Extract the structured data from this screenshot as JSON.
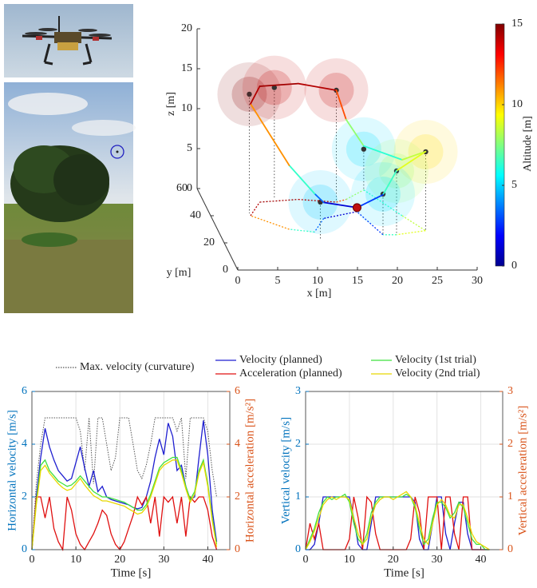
{
  "chart_data": [
    {
      "type": "line3d",
      "xlabel": "x [m]",
      "ylabel": "y [m]",
      "zlabel": "z [m]",
      "clabel": "Altitude [m]",
      "xlim": [
        0,
        30
      ],
      "ylim": [
        0,
        60
      ],
      "zlim": [
        0,
        20
      ],
      "clim": [
        0,
        15
      ],
      "xticks": [
        0,
        5,
        10,
        15,
        20,
        25,
        30
      ],
      "yticks": [
        0,
        20,
        40,
        60
      ],
      "zticks": [
        0,
        5,
        10,
        15,
        20
      ],
      "cticks": [
        0,
        5,
        10,
        15
      ],
      "waypoints": {
        "x": [
          5,
          9,
          16.6,
          20.8,
          26,
          22.1,
          20.4,
          12.2
        ],
        "y": [
          41.8,
          52,
          50,
          59,
          28.8,
          25.9,
          25.9,
          21.8
        ],
        "z": [
          14.9,
          14,
          14,
          5.1,
          9.9,
          8,
          5.1,
          4.8
        ]
      },
      "trajectory": {
        "x": [
          18.6,
          14,
          12,
          9,
          5,
          7,
          12,
          16.6,
          18,
          20.8,
          24,
          26,
          22.1,
          20.4,
          18.6
        ],
        "y": [
          43,
          38,
          28,
          30,
          40,
          50,
          52,
          50,
          52,
          59,
          40,
          29,
          26,
          26,
          43
        ],
        "z": [
          0.5,
          2,
          4.8,
          8,
          14,
          14.5,
          14.5,
          14,
          10,
          5.5,
          7,
          9.9,
          8,
          5,
          0.5
        ]
      }
    },
    {
      "type": "line",
      "xlabel": "Time [s]",
      "ylabel": "Horizontal velocity [m/s]",
      "y2label": "Horizontal acceleration [m/s²]",
      "xlim": [
        0,
        45
      ],
      "xticks": [
        0,
        10,
        20,
        30,
        40
      ],
      "ylim": [
        0,
        6
      ],
      "yticks": [
        0,
        2,
        4,
        6
      ],
      "y2lim": [
        0,
        6
      ],
      "y2ticks": [
        0,
        2,
        4,
        6
      ],
      "grid": true,
      "legend": true,
      "x": [
        0,
        1,
        2,
        3,
        4,
        5,
        6,
        7,
        8,
        9,
        10,
        11,
        12,
        13,
        14,
        15,
        16,
        17,
        18,
        19,
        20,
        21,
        22,
        23,
        24,
        25,
        26,
        27,
        28,
        29,
        30,
        31,
        32,
        33,
        34,
        35,
        36,
        37,
        38,
        39,
        40,
        41,
        42
      ],
      "series": [
        {
          "name": "Max. velocity (curvature)",
          "color": "#555555",
          "linestyle": "dotted",
          "values": [
            0,
            2.5,
            4,
            5,
            5,
            5,
            5,
            5,
            5,
            5,
            5,
            4.5,
            3,
            5,
            2.5,
            5,
            5,
            4,
            3,
            3.5,
            5,
            5,
            5,
            4,
            3,
            2.7,
            3.2,
            4,
            5,
            5,
            5,
            5,
            5,
            4.5,
            5,
            2.7,
            5,
            5,
            5,
            5,
            4.5,
            3,
            2
          ]
        },
        {
          "name": "Velocity (planned)",
          "color": "#1f1fd0",
          "values": [
            0,
            2,
            3.5,
            4.6,
            3.9,
            3.4,
            3,
            2.8,
            2.6,
            2.7,
            3.3,
            3.9,
            3.1,
            2.4,
            3,
            2.2,
            2.4,
            2,
            1.9,
            1.85,
            1.8,
            1.75,
            1.7,
            1.6,
            1.55,
            1.6,
            2,
            2.6,
            3.5,
            4.2,
            3.6,
            4.8,
            4.3,
            3,
            3.2,
            2.4,
            1.9,
            2,
            3.5,
            4.9,
            3.6,
            1.5,
            0.3
          ]
        },
        {
          "name": "Acceleration (planned)",
          "color": "#e01010",
          "axis": "y2",
          "values": [
            0,
            2,
            2,
            1.2,
            2,
            0.8,
            0.3,
            0,
            2,
            1.5,
            0.6,
            0.2,
            0,
            0.3,
            0.6,
            1,
            1.5,
            1.3,
            0.6,
            0.2,
            0,
            0.3,
            0.8,
            1.3,
            2,
            1.7,
            2,
            1,
            2,
            0.5,
            2,
            1.8,
            2,
            1,
            2,
            0.5,
            2,
            1.8,
            2,
            2,
            1.5,
            0.5,
            0
          ]
        },
        {
          "name": "Velocity (1st trial)",
          "color": "#3ee03e",
          "values": [
            0,
            1.8,
            3.2,
            3.4,
            3,
            2.8,
            2.6,
            2.5,
            2.4,
            2.45,
            2.6,
            2.8,
            2.6,
            2.4,
            2.2,
            2.1,
            2,
            2,
            1.95,
            1.9,
            1.85,
            1.8,
            1.7,
            1.6,
            1.5,
            1.5,
            1.7,
            2.1,
            2.6,
            3.1,
            3.3,
            3.4,
            3.5,
            3.5,
            3,
            2.4,
            1.9,
            2.2,
            3,
            3.4,
            2.5,
            1.2,
            0.2
          ]
        },
        {
          "name": "Velocity (2nd trial)",
          "color": "#e8d800",
          "values": [
            0,
            1.7,
            3,
            3.2,
            2.9,
            2.7,
            2.5,
            2.35,
            2.25,
            2.3,
            2.5,
            2.7,
            2.45,
            2.25,
            2.05,
            1.95,
            1.85,
            1.85,
            1.8,
            1.75,
            1.7,
            1.65,
            1.55,
            1.45,
            1.35,
            1.4,
            1.6,
            2,
            2.5,
            3,
            3.2,
            3.3,
            3.4,
            3.4,
            2.9,
            2.3,
            1.8,
            2.1,
            2.9,
            3.3,
            2.4,
            1.1,
            0.1
          ]
        }
      ]
    },
    {
      "type": "line",
      "xlabel": "Time [s]",
      "ylabel": "Vertical velocity [m/s]",
      "y2label": "Vertical acceleration [m/s²]",
      "xlim": [
        0,
        45
      ],
      "xticks": [
        0,
        10,
        20,
        30,
        40
      ],
      "ylim": [
        0,
        3
      ],
      "yticks": [
        0,
        1,
        2,
        3
      ],
      "y2lim": [
        0,
        3
      ],
      "y2ticks": [
        0,
        1,
        2,
        3
      ],
      "grid": true,
      "x": [
        0,
        1,
        2,
        3,
        4,
        5,
        6,
        7,
        8,
        9,
        10,
        11,
        12,
        13,
        14,
        15,
        16,
        17,
        18,
        19,
        20,
        21,
        22,
        23,
        24,
        25,
        26,
        27,
        28,
        29,
        30,
        31,
        32,
        33,
        34,
        35,
        36,
        37,
        38,
        39,
        40,
        41,
        42
      ],
      "series": [
        {
          "color": "#1f1fd0",
          "values": [
            0,
            0,
            0.1,
            0.5,
            1,
            1,
            1,
            1,
            1,
            1,
            1,
            0.6,
            0.1,
            0,
            0,
            0.5,
            1,
            1,
            1,
            1,
            1,
            1,
            1,
            1,
            1,
            0.9,
            0.2,
            0,
            0,
            0.5,
            1,
            1,
            0.3,
            0,
            0.5,
            0.9,
            0.9,
            0.3,
            0,
            0,
            0,
            0,
            0
          ]
        },
        {
          "color": "#e01010",
          "axis": "y2",
          "values": [
            0,
            0.5,
            0.2,
            0.5,
            0,
            0,
            0,
            0,
            0,
            0,
            0.2,
            1,
            0.6,
            0,
            1,
            0.9,
            0.3,
            0,
            0,
            0,
            0,
            0,
            0,
            0,
            0.2,
            1,
            0.7,
            0,
            1,
            1,
            1,
            0,
            1,
            1,
            0.3,
            0,
            1,
            1,
            0,
            0,
            0,
            0,
            0
          ]
        },
        {
          "color": "#3ee03e",
          "values": [
            0,
            0.2,
            0.4,
            0.7,
            0.9,
            1,
            0.95,
            1,
            1,
            1.05,
            0.9,
            0.5,
            0.2,
            0.1,
            0.3,
            0.7,
            0.9,
            1,
            1,
            1,
            1,
            1,
            1,
            1.05,
            1,
            0.8,
            0.4,
            0.1,
            0.2,
            0.6,
            0.9,
            0.9,
            0.8,
            0.6,
            0.7,
            0.9,
            0.8,
            0.5,
            0.2,
            0.1,
            0.1,
            0,
            0
          ]
        },
        {
          "color": "#e8d800",
          "values": [
            0,
            0.15,
            0.35,
            0.6,
            0.85,
            0.95,
            1,
            0.95,
            1,
            1,
            0.95,
            0.6,
            0.3,
            0.1,
            0.2,
            0.6,
            0.85,
            0.95,
            1,
            1,
            0.95,
            1,
            1.05,
            1.1,
            1,
            0.85,
            0.5,
            0.2,
            0.1,
            0.5,
            0.85,
            0.95,
            0.85,
            0.65,
            0.6,
            0.85,
            0.85,
            0.6,
            0.3,
            0.15,
            0.1,
            0.05,
            0
          ]
        }
      ]
    }
  ]
}
